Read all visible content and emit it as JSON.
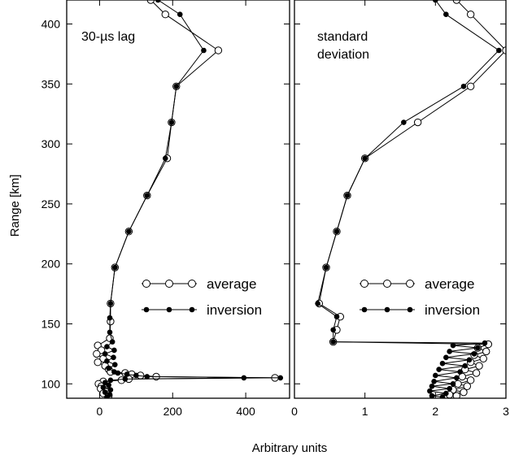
{
  "chart_data": {
    "type": "line",
    "ylabel": "Range [km]",
    "xlabel": "Arbitrary units",
    "ylim": [
      88,
      420
    ],
    "yticks": [
      100,
      150,
      200,
      250,
      300,
      350,
      400
    ],
    "panels": [
      {
        "label_lines": [
          "30-µs lag"
        ],
        "xlim": [
          -90,
          520
        ],
        "xticks": [
          0,
          200,
          400
        ],
        "legend": {
          "position": "center-right",
          "entries": [
            "average",
            "inversion"
          ]
        },
        "series": [
          {
            "name": "average",
            "marker": "open-circle",
            "points": [
              [
                140,
                420
              ],
              [
                180,
                408
              ],
              [
                325,
                378
              ],
              [
                210,
                348
              ],
              [
                197,
                318
              ],
              [
                185,
                288
              ],
              [
                130,
                257
              ],
              [
                80,
                227
              ],
              [
                42,
                197
              ],
              [
                30,
                167
              ],
              [
                30,
                152
              ],
              [
                28,
                138
              ],
              [
                -5,
                132
              ],
              [
                5,
                128
              ],
              [
                -8,
                125
              ],
              [
                10,
                121
              ],
              [
                -5,
                118
              ],
              [
                15,
                115
              ],
              [
                25,
                112
              ],
              [
                30,
                110
              ],
              [
                70,
                109
              ],
              [
                88,
                108
              ],
              [
                112,
                107
              ],
              [
                155,
                106
              ],
              [
                480,
                105
              ],
              [
                80,
                104
              ],
              [
                60,
                103
              ],
              [
                10,
                102
              ],
              [
                -3,
                100
              ],
              [
                5,
                98
              ],
              [
                3,
                96
              ],
              [
                20,
                94
              ],
              [
                10,
                92
              ],
              [
                25,
                90
              ]
            ]
          },
          {
            "name": "inversion",
            "marker": "filled-circle",
            "points": [
              [
                160,
                420
              ],
              [
                220,
                408
              ],
              [
                285,
                378
              ],
              [
                210,
                348
              ],
              [
                197,
                318
              ],
              [
                180,
                288
              ],
              [
                130,
                257
              ],
              [
                80,
                227
              ],
              [
                42,
                197
              ],
              [
                30,
                167
              ],
              [
                28,
                155
              ],
              [
                28,
                143
              ],
              [
                35,
                135
              ],
              [
                20,
                131
              ],
              [
                40,
                128
              ],
              [
                15,
                125
              ],
              [
                38,
                122
              ],
              [
                20,
                119
              ],
              [
                42,
                116
              ],
              [
                25,
                113
              ],
              [
                40,
                110
              ],
              [
                50,
                109
              ],
              [
                75,
                108
              ],
              [
                100,
                107
              ],
              [
                130,
                106
              ],
              [
                495,
                105
              ],
              [
                395,
                105
              ],
              [
                70,
                104
              ],
              [
                30,
                103
              ],
              [
                15,
                101
              ],
              [
                25,
                99
              ],
              [
                10,
                97
              ],
              [
                30,
                95
              ],
              [
                15,
                93
              ],
              [
                28,
                91
              ],
              [
                20,
                89
              ]
            ]
          }
        ]
      },
      {
        "label_lines": [
          "standard",
          "deviation"
        ],
        "xlim": [
          0,
          3
        ],
        "xticks": [
          0,
          1,
          2,
          3
        ],
        "legend": {
          "position": "center-right",
          "entries": [
            "average",
            "inversion"
          ]
        },
        "series": [
          {
            "name": "average",
            "marker": "open-circle",
            "points": [
              [
                2.3,
                420
              ],
              [
                2.5,
                408
              ],
              [
                3.0,
                378
              ],
              [
                2.5,
                348
              ],
              [
                1.75,
                318
              ],
              [
                1.0,
                288
              ],
              [
                0.75,
                257
              ],
              [
                0.6,
                227
              ],
              [
                0.45,
                197
              ],
              [
                0.35,
                167
              ],
              [
                0.65,
                156
              ],
              [
                0.6,
                145
              ],
              [
                0.55,
                135
              ],
              [
                2.75,
                133
              ],
              [
                2.6,
                130
              ],
              [
                2.72,
                127
              ],
              [
                2.55,
                124
              ],
              [
                2.68,
                121
              ],
              [
                2.5,
                118
              ],
              [
                2.62,
                115
              ],
              [
                2.42,
                112
              ],
              [
                2.58,
                109
              ],
              [
                2.38,
                106
              ],
              [
                2.5,
                103
              ],
              [
                2.32,
                100
              ],
              [
                2.45,
                98
              ],
              [
                2.25,
                95
              ],
              [
                2.4,
                93
              ],
              [
                2.2,
                91
              ],
              [
                2.3,
                90
              ]
            ]
          },
          {
            "name": "inversion",
            "marker": "filled-circle",
            "points": [
              [
                2.0,
                420
              ],
              [
                2.15,
                408
              ],
              [
                2.9,
                378
              ],
              [
                2.4,
                348
              ],
              [
                1.55,
                318
              ],
              [
                1.0,
                288
              ],
              [
                0.75,
                257
              ],
              [
                0.6,
                227
              ],
              [
                0.45,
                197
              ],
              [
                0.33,
                167
              ],
              [
                0.6,
                156
              ],
              [
                0.55,
                145
              ],
              [
                0.55,
                135
              ],
              [
                2.7,
                134
              ],
              [
                2.25,
                132
              ],
              [
                2.6,
                130
              ],
              [
                2.2,
                127
              ],
              [
                2.55,
                125
              ],
              [
                2.15,
                122
              ],
              [
                2.48,
                120
              ],
              [
                2.1,
                117
              ],
              [
                2.42,
                115
              ],
              [
                2.05,
                112
              ],
              [
                2.35,
                110
              ],
              [
                2.0,
                107
              ],
              [
                2.3,
                105
              ],
              [
                1.98,
                102
              ],
              [
                2.25,
                100
              ],
              [
                1.95,
                98
              ],
              [
                2.2,
                96
              ],
              [
                1.92,
                94
              ],
              [
                2.15,
                92
              ],
              [
                1.95,
                90
              ],
              [
                2.1,
                89
              ]
            ]
          }
        ]
      }
    ]
  }
}
